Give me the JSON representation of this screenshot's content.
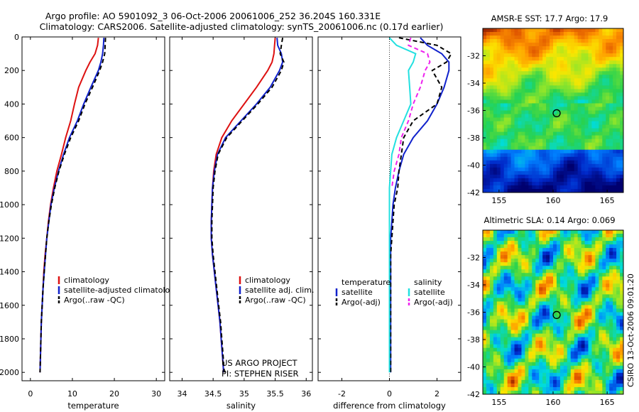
{
  "figure": {
    "title_line1": "Argo profile: AO 5901092_3 06-Oct-2006 20061006_252 36.204S 160.331E",
    "title_line2": "Climatology: CARS2006. Satellite-adjusted climatology: synTS_20061006.nc (0.17d earlier)",
    "credit_line1": "US ARGO PROJECT",
    "credit_line2": "PI: STEPHEN RISER",
    "stamp": "CSIRO 13-Oct-2006 09:01:20"
  },
  "colors": {
    "climatology": "#dd1111",
    "satellite": "#1122cc",
    "argo": "#000000",
    "salinity_satellite": "#22e0e0",
    "salinity_argo": "#ee22ee",
    "circle_marker": "#000000"
  },
  "chart_data": [
    {
      "type": "line",
      "xlabel": "temperature",
      "xlim": [
        -2,
        32
      ],
      "xticks": [
        "0",
        "10",
        "20",
        "30"
      ],
      "ylim": [
        0,
        2050
      ],
      "yticks": [
        "0",
        "200",
        "400",
        "600",
        "800",
        "1000",
        "1200",
        "1400",
        "1600",
        "1800",
        "2000"
      ],
      "depth": [
        5,
        50,
        100,
        150,
        200,
        300,
        400,
        500,
        600,
        700,
        800,
        900,
        1000,
        1100,
        1200,
        1300,
        1400,
        1500,
        1600,
        1700,
        1800,
        1900,
        2000
      ],
      "series": [
        {
          "name": "climatology",
          "values": [
            16.2,
            16,
            15.4,
            14.2,
            13.2,
            11.5,
            10.5,
            9.6,
            8.4,
            7.4,
            6.3,
            5.5,
            4.8,
            4.3,
            3.9,
            3.5,
            3.2,
            3,
            2.8,
            2.6,
            2.5,
            2.4,
            2.3
          ]
        },
        {
          "name": "satellite-adjusted climatology",
          "values": [
            17.5,
            17.4,
            17.2,
            16.8,
            16.2,
            14.4,
            12.7,
            11.2,
            9.3,
            7.9,
            6.7,
            5.7,
            4.9,
            4.4,
            3.9,
            3.6,
            3.3,
            3,
            2.8,
            2.6,
            2.5,
            2.4,
            2.3
          ]
        },
        {
          "name": "Argo(..raw -QC)",
          "values": [
            17.9,
            17.8,
            17.7,
            17.2,
            16.5,
            14.8,
            13,
            11.5,
            9.6,
            8.1,
            6.8,
            5.8,
            5,
            4.4,
            3.9,
            3.6,
            3.3,
            3,
            2.8,
            2.6,
            2.5,
            2.4,
            2.3
          ]
        }
      ],
      "legend": {
        "entries": [
          "climatology",
          "satellite-adjusted climatology",
          "Argo(..raw -QC)"
        ]
      }
    },
    {
      "type": "line",
      "xlabel": "salinity",
      "xlim": [
        33.8,
        36.1
      ],
      "xticks": [
        "34",
        "34.5",
        "35",
        "35.5",
        "36"
      ],
      "ylim": [
        0,
        2050
      ],
      "depth": [
        5,
        50,
        100,
        150,
        200,
        300,
        400,
        500,
        600,
        700,
        800,
        900,
        1000,
        1100,
        1200,
        1300,
        1400,
        1500,
        1600,
        1700,
        1800,
        1900,
        2000
      ],
      "series": [
        {
          "name": "climatology",
          "values": [
            35.5,
            35.49,
            35.48,
            35.45,
            35.38,
            35.2,
            35.0,
            34.8,
            34.64,
            34.55,
            34.51,
            34.49,
            34.48,
            34.47,
            34.47,
            34.49,
            34.52,
            34.55,
            34.58,
            34.61,
            34.63,
            34.65,
            34.67
          ]
        },
        {
          "name": "satellite adj. clim.",
          "values": [
            35.53,
            35.54,
            35.6,
            35.62,
            35.57,
            35.42,
            35.2,
            34.95,
            34.7,
            34.57,
            34.52,
            34.49,
            34.48,
            34.47,
            34.47,
            34.49,
            34.52,
            34.55,
            34.58,
            34.61,
            34.63,
            34.65,
            34.67
          ]
        },
        {
          "name": "Argo(..raw -QC)",
          "values": [
            35.62,
            35.6,
            35.58,
            35.64,
            35.6,
            35.45,
            35.22,
            34.97,
            34.72,
            34.58,
            34.53,
            34.5,
            34.49,
            34.48,
            34.48,
            34.5,
            34.53,
            34.56,
            34.59,
            34.62,
            34.64,
            34.66,
            34.68
          ]
        }
      ],
      "legend": {
        "entries": [
          "climatology",
          "satellite adj. clim.",
          "Argo(..raw -QC)"
        ]
      }
    },
    {
      "type": "line",
      "xlabel": "difference from climatology",
      "xlim": [
        -3,
        3
      ],
      "xticks": [
        "-2",
        "0",
        "2"
      ],
      "ylim": [
        0,
        2050
      ],
      "depth": [
        5,
        50,
        100,
        150,
        200,
        300,
        400,
        500,
        600,
        700,
        800,
        900,
        1000,
        1100,
        1200,
        1300,
        1400,
        1500,
        1600,
        1700,
        1800,
        1900,
        2000
      ],
      "series": [
        {
          "name": "temperature satellite",
          "values": [
            1.3,
            1.6,
            2.2,
            2.5,
            2.5,
            2.3,
            2.0,
            1.6,
            1.0,
            0.6,
            0.4,
            0.25,
            0.15,
            0.1,
            0.05,
            0.05,
            0.05,
            0.05,
            0.05,
            0.05,
            0.05,
            0.05,
            0.05
          ]
        },
        {
          "name": "temperature Argo(-adj)",
          "values": [
            0.4,
            2.0,
            2.6,
            2.4,
            1.8,
            2.2,
            2.0,
            1.0,
            0.6,
            0.5,
            0.4,
            0.35,
            0.2,
            0.15,
            0.1,
            0.05,
            0.05,
            0.05,
            0.05,
            0.05,
            0.05,
            0.05,
            0.05
          ]
        },
        {
          "name": "salinity satellite",
          "values": [
            0.0,
            0.3,
            1.1,
            1.0,
            0.8,
            0.85,
            0.9,
            0.6,
            0.3,
            0.1,
            0.05,
            0.0,
            0.0,
            0.0,
            0.0,
            0.0,
            0.0,
            0.0,
            0.0,
            0.0,
            0.0,
            0.0,
            0.0
          ]
        },
        {
          "name": "salinity Argo(-adj)",
          "values": [
            0.9,
            0.8,
            1.6,
            1.7,
            1.5,
            1.3,
            1.0,
            0.8,
            0.5,
            0.4,
            0.2,
            0.1,
            null,
            null,
            null,
            null,
            null,
            null,
            null,
            null,
            null,
            null,
            null
          ]
        }
      ],
      "legend": {
        "column1_title": "temperature",
        "column2_title": "salinity",
        "column1_entries": [
          "satellite",
          "Argo(-adj)"
        ],
        "column2_entries": [
          "satellite",
          "Argo(-adj)"
        ]
      }
    },
    {
      "type": "heatmap",
      "title": "AMSR-E SST: 17.7 Argo: 17.9",
      "xlim": [
        153.5,
        166.5
      ],
      "ylim": [
        -42,
        -30
      ],
      "xticks": [
        "155",
        "160",
        "165"
      ],
      "yticks": [
        "-32",
        "-34",
        "-36",
        "-38",
        "-40",
        "-42"
      ],
      "marker": {
        "lon": 160.331,
        "lat": -36.204
      }
    },
    {
      "type": "heatmap",
      "title": "Altimetric SLA: 0.14 Argo: 0.069",
      "xlim": [
        153.5,
        166.5
      ],
      "ylim": [
        -42,
        -30
      ],
      "xticks": [
        "155",
        "160",
        "165"
      ],
      "yticks": [
        "-32",
        "-34",
        "-36",
        "-38",
        "-40",
        "-42"
      ],
      "marker": {
        "lon": 160.331,
        "lat": -36.204
      }
    }
  ]
}
